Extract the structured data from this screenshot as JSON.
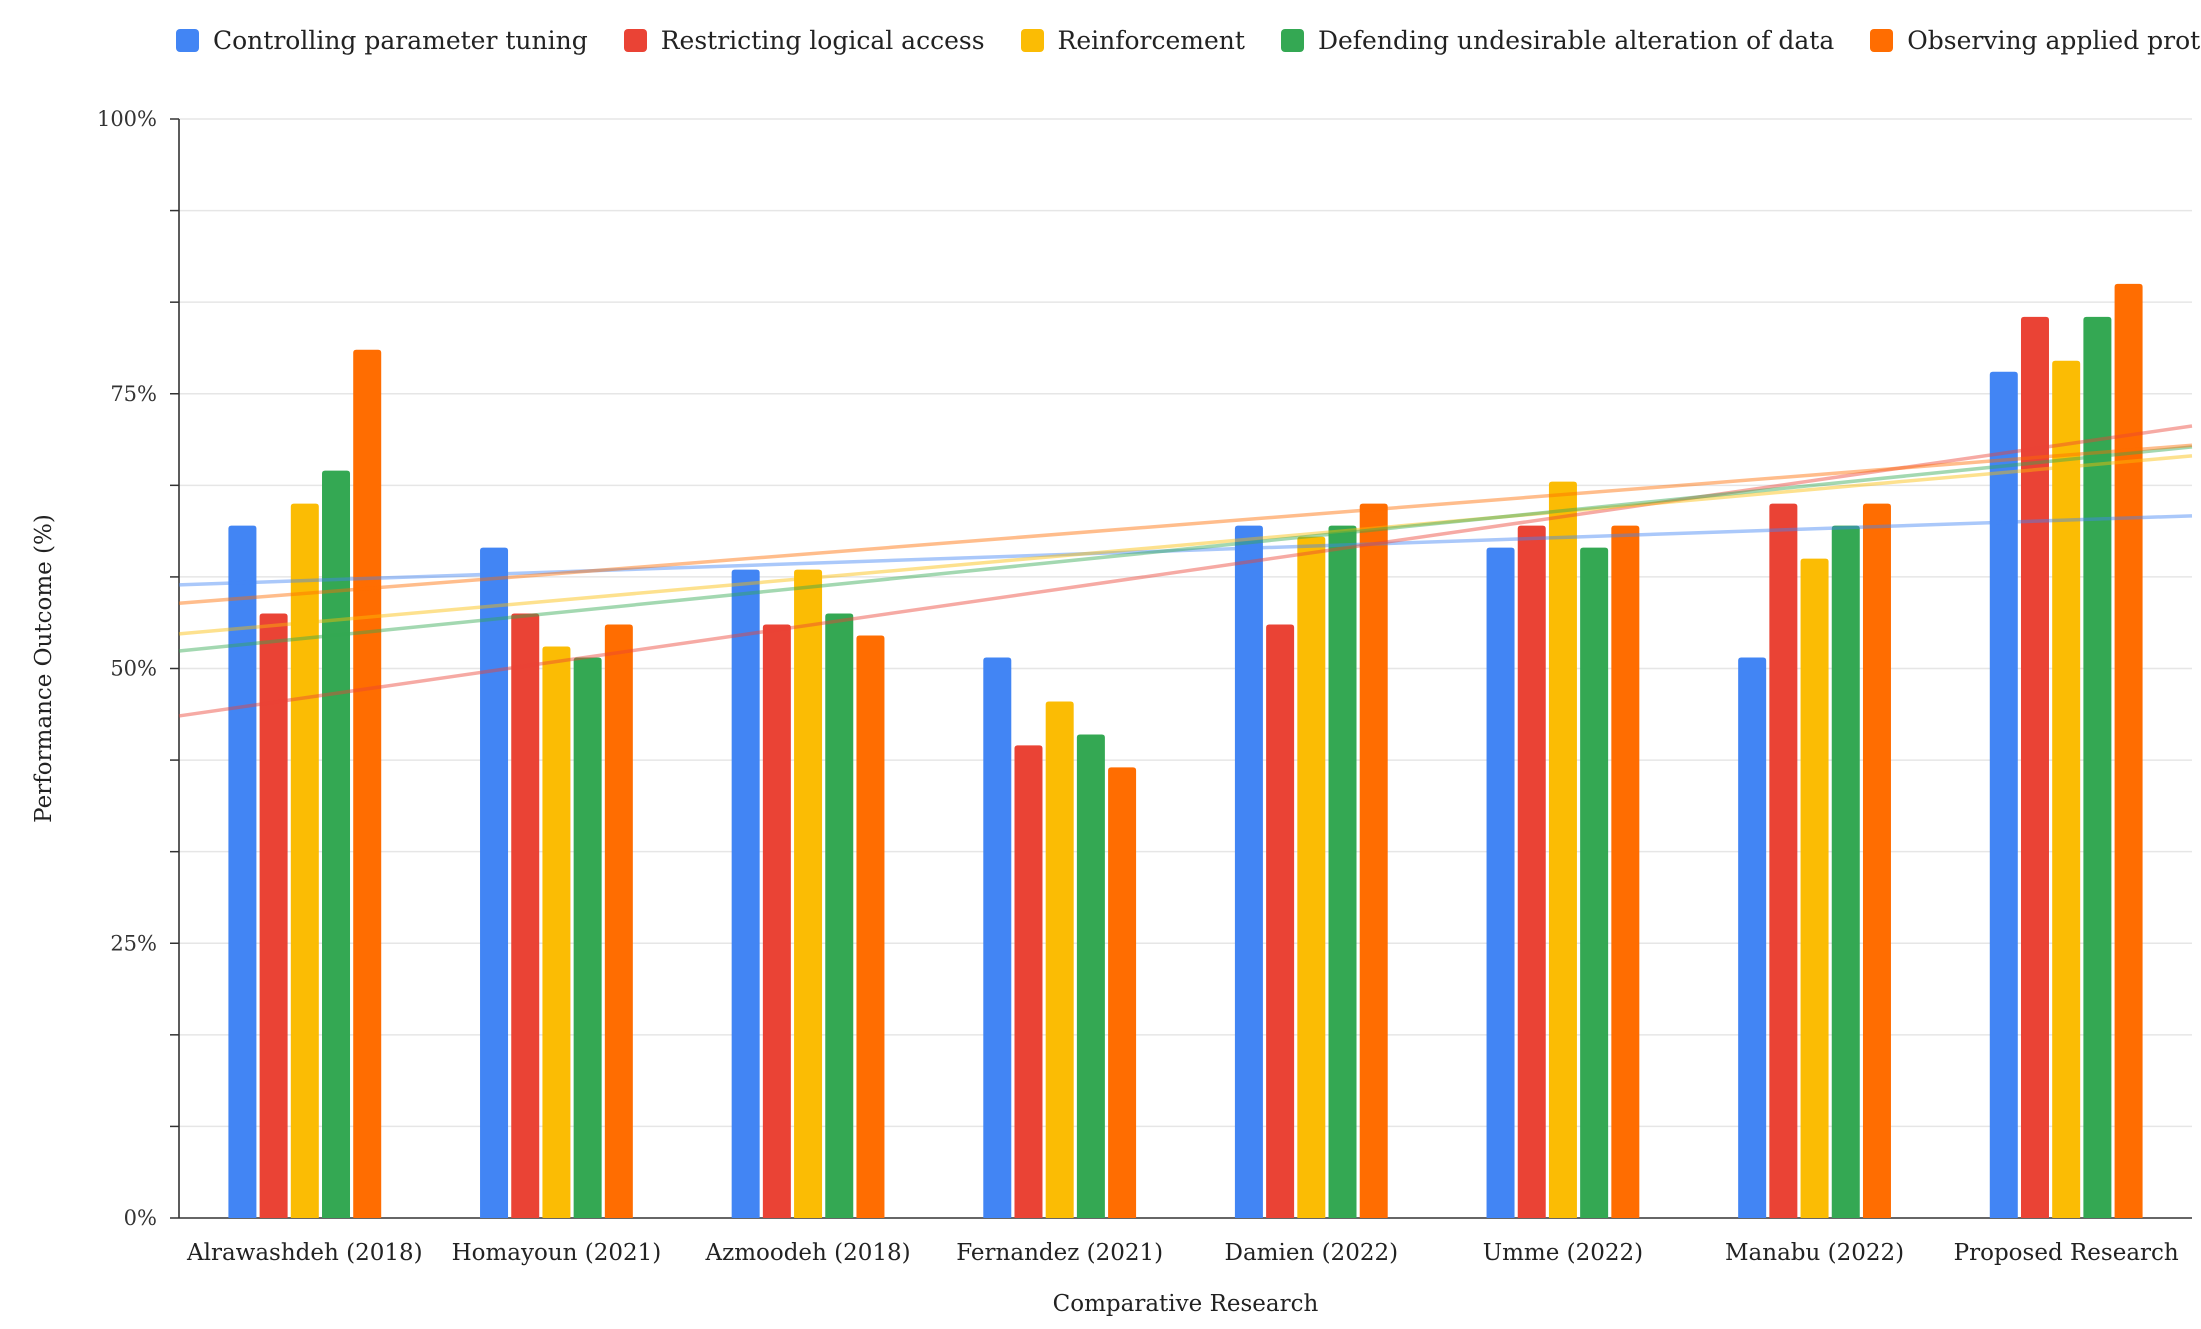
{
  "chart_data": {
    "type": "bar",
    "title": "",
    "xlabel": "Comparative Research",
    "ylabel": "Performance Outcome (%)",
    "ylim": [
      0,
      100
    ],
    "yticks": [
      "0%",
      "25%",
      "50%",
      "75%",
      "100%"
    ],
    "grid": true,
    "legend_position": "top-left",
    "categories": [
      "Alrawashdeh (2018)",
      "Homayoun (2021)",
      "Azmoodeh (2018)",
      "Fernandez (2021)",
      "Damien (2022)",
      "Umme (2022)",
      "Manabu (2022)",
      "Proposed Research"
    ],
    "series": [
      {
        "name": "Controlling parameter tuning",
        "color": "#4285f4",
        "values": [
          63,
          61,
          59,
          51,
          63,
          61,
          51,
          77
        ]
      },
      {
        "name": "Restricting logical access",
        "color": "#ea4335",
        "values": [
          55,
          55,
          54,
          43,
          54,
          63,
          65,
          82
        ]
      },
      {
        "name": "Reinforcement",
        "color": "#fbbc04",
        "values": [
          65,
          52,
          59,
          47,
          62,
          67,
          60,
          78
        ]
      },
      {
        "name": "Defending undesirable alteration of data",
        "color": "#34a853",
        "values": [
          68,
          51,
          55,
          44,
          63,
          61,
          63,
          82
        ]
      },
      {
        "name": "Observing applied protocols",
        "color": "#ff6d01",
        "values": [
          79,
          54,
          53,
          41,
          65,
          63,
          65,
          85
        ]
      }
    ],
    "trendlines": "linear"
  }
}
